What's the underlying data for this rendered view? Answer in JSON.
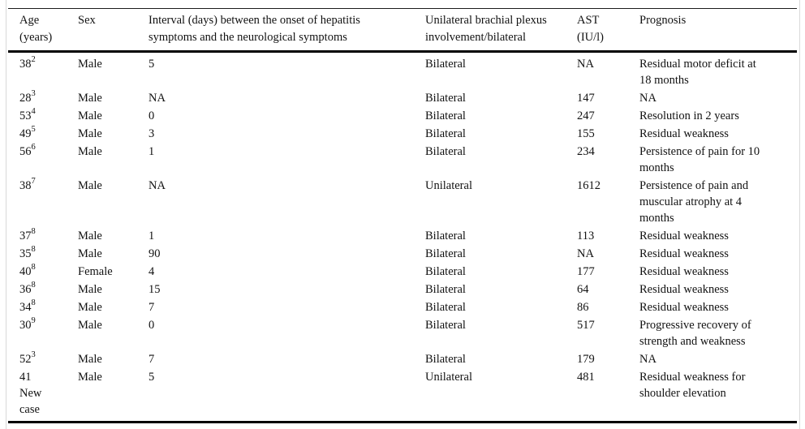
{
  "table": {
    "columns": [
      {
        "label": "Age\n(years)"
      },
      {
        "label": "Sex"
      },
      {
        "label": "Interval (days) between the onset of hepatitis\nsymptoms and the neurological symptoms"
      },
      {
        "label": "Unilateral brachial plexus\ninvolvement/bilateral"
      },
      {
        "label": "AST\n(IU/l)"
      },
      {
        "label": "Prognosis"
      }
    ],
    "rows": [
      {
        "age": "38",
        "age_ref": "2",
        "age_note": "",
        "sex": "Male",
        "interval": "5",
        "involvement": "Bilateral",
        "ast": "NA",
        "prognosis": "Residual motor deficit at\n18 months"
      },
      {
        "age": "28",
        "age_ref": "3",
        "age_note": "",
        "sex": "Male",
        "interval": "NA",
        "involvement": "Bilateral",
        "ast": "147",
        "prognosis": "NA"
      },
      {
        "age": "53",
        "age_ref": "4",
        "age_note": "",
        "sex": "Male",
        "interval": "0",
        "involvement": "Bilateral",
        "ast": "247",
        "prognosis": "Resolution in 2 years"
      },
      {
        "age": "49",
        "age_ref": "5",
        "age_note": "",
        "sex": "Male",
        "interval": "3",
        "involvement": "Bilateral",
        "ast": "155",
        "prognosis": "Residual weakness"
      },
      {
        "age": "56",
        "age_ref": "6",
        "age_note": "",
        "sex": "Male",
        "interval": "1",
        "involvement": "Bilateral",
        "ast": "234",
        "prognosis": "Persistence of pain for 10\nmonths"
      },
      {
        "age": "38",
        "age_ref": "7",
        "age_note": "",
        "sex": "Male",
        "interval": "NA",
        "involvement": "Unilateral",
        "ast": "1612",
        "prognosis": "Persistence of pain and\nmuscular atrophy at 4\nmonths"
      },
      {
        "age": "37",
        "age_ref": "8",
        "age_note": "",
        "sex": "Male",
        "interval": "1",
        "involvement": "Bilateral",
        "ast": "113",
        "prognosis": "Residual weakness"
      },
      {
        "age": "35",
        "age_ref": "8",
        "age_note": "",
        "sex": "Male",
        "interval": "90",
        "involvement": "Bilateral",
        "ast": "NA",
        "prognosis": "Residual weakness"
      },
      {
        "age": "40",
        "age_ref": "8",
        "age_note": "",
        "sex": "Female",
        "interval": "4",
        "involvement": "Bilateral",
        "ast": "177",
        "prognosis": "Residual weakness"
      },
      {
        "age": "36",
        "age_ref": "8",
        "age_note": "",
        "sex": "Male",
        "interval": "15",
        "involvement": "Bilateral",
        "ast": "64",
        "prognosis": "Residual weakness"
      },
      {
        "age": "34",
        "age_ref": "8",
        "age_note": "",
        "sex": "Male",
        "interval": "7",
        "involvement": "Bilateral",
        "ast": "86",
        "prognosis": "Residual weakness"
      },
      {
        "age": "30",
        "age_ref": "9",
        "age_note": "",
        "sex": "Male",
        "interval": "0",
        "involvement": "Bilateral",
        "ast": "517",
        "prognosis": "Progressive recovery of\nstrength and weakness"
      },
      {
        "age": "52",
        "age_ref": "3",
        "age_note": "",
        "sex": "Male",
        "interval": "7",
        "involvement": "Bilateral",
        "ast": "179",
        "prognosis": "NA"
      },
      {
        "age": "41",
        "age_ref": "",
        "age_note": "New\ncase",
        "sex": "Male",
        "interval": "5",
        "involvement": "Unilateral",
        "ast": "481",
        "prognosis": "Residual weakness for\nshoulder elevation"
      }
    ]
  }
}
